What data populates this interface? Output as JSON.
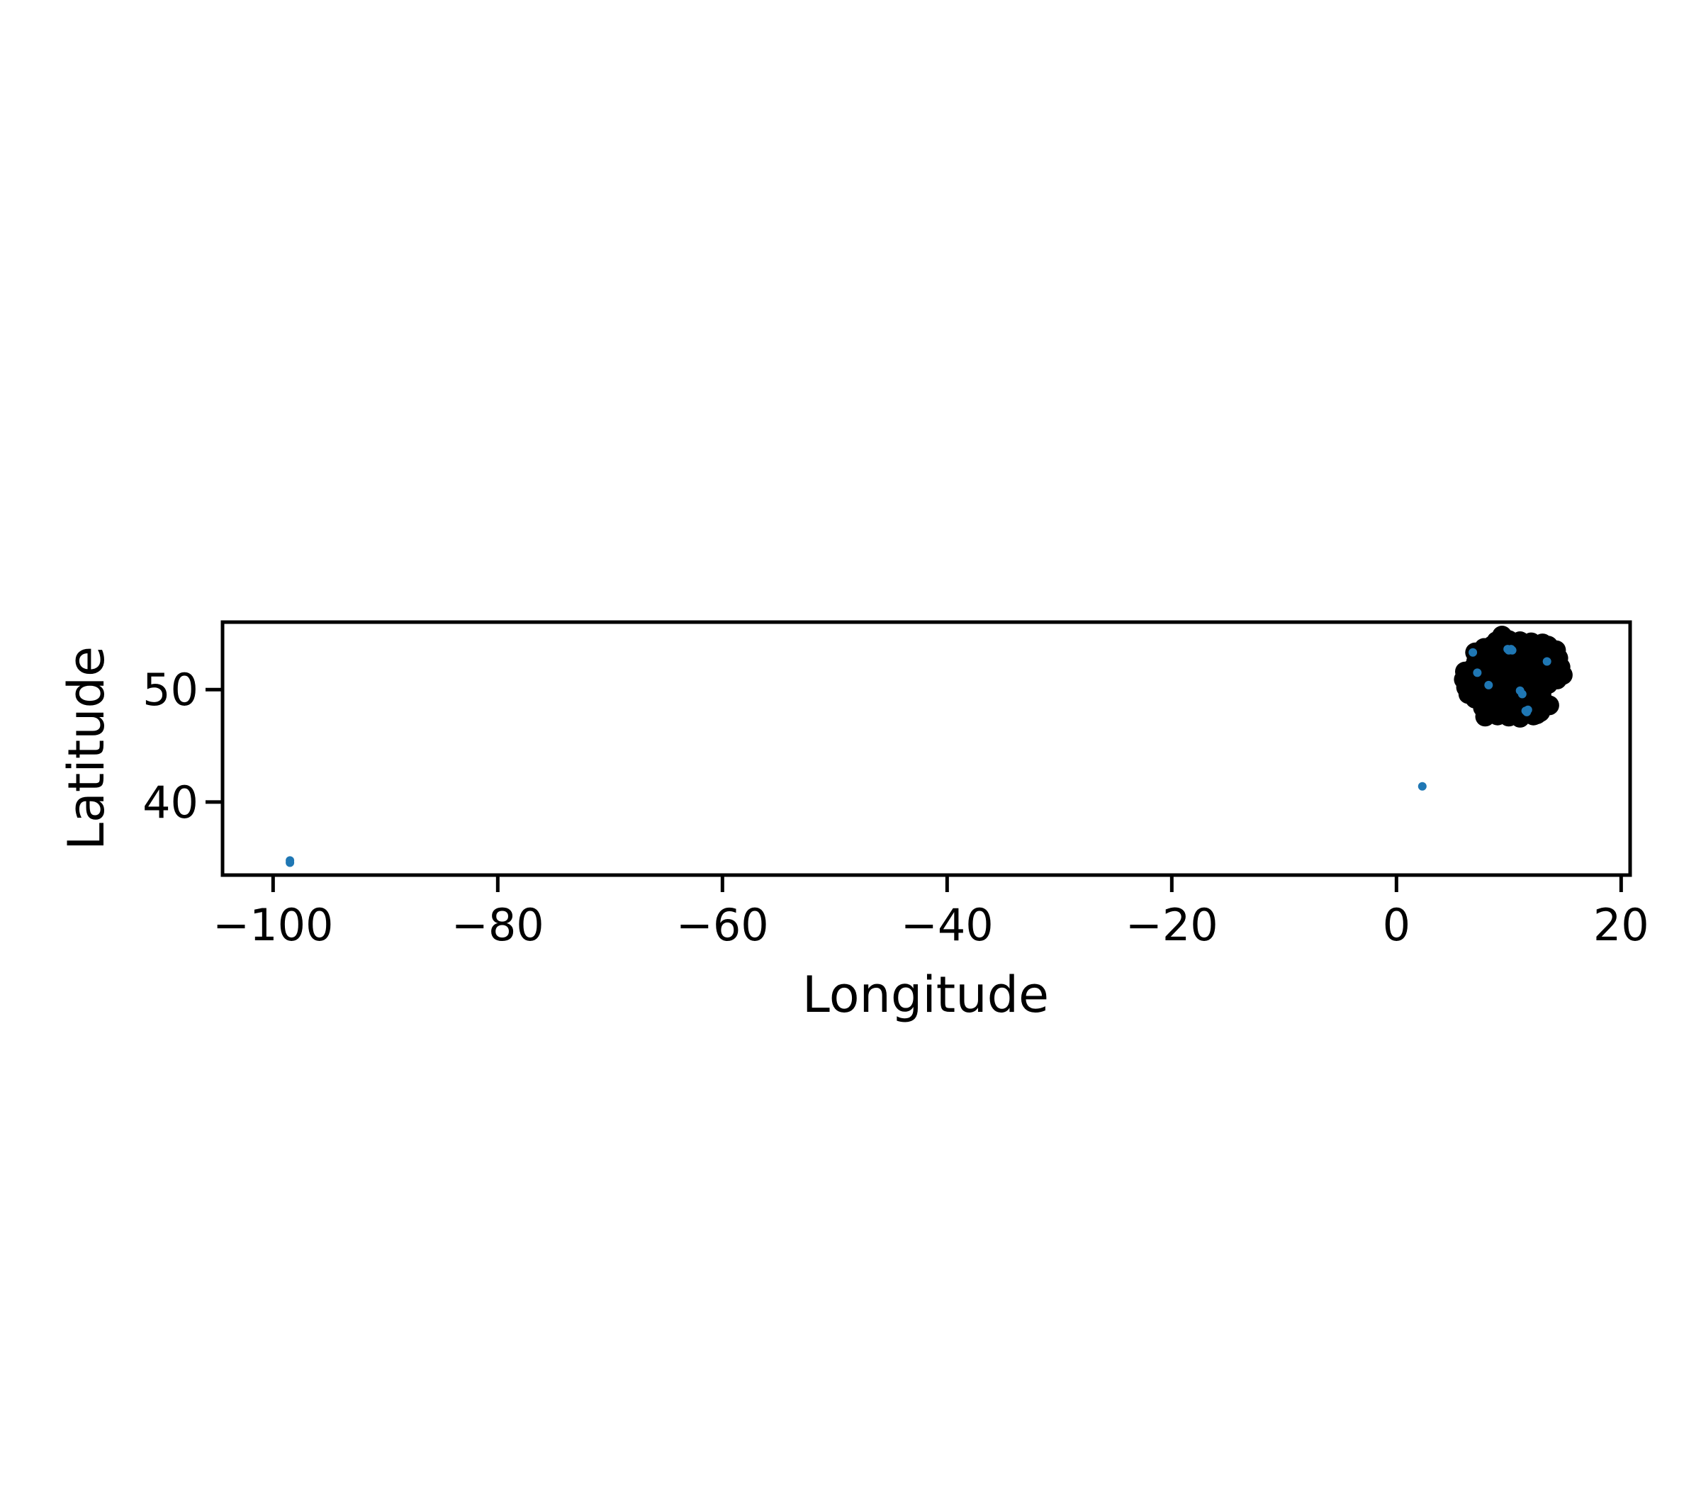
{
  "chart_data": {
    "type": "scatter",
    "title": "",
    "xlabel": "Longitude",
    "ylabel": "Latitude",
    "xlim": [
      -104.5,
      20.8
    ],
    "ylim": [
      33.5,
      56
    ],
    "xticks": [
      -100,
      -80,
      -60,
      -40,
      -20,
      0,
      20
    ],
    "yticks": [
      40,
      50
    ],
    "xtick_labels": [
      "−100",
      "−80",
      "−60",
      "−40",
      "−20",
      "0",
      "20"
    ],
    "ytick_labels": [
      "40",
      "50"
    ],
    "grid": false,
    "legend": "none",
    "series": [
      {
        "color": "#000000",
        "points": [
          [
            9.5,
            54.6
          ],
          [
            10.0,
            54.4
          ],
          [
            11.0,
            54.3
          ],
          [
            12.0,
            54.2
          ],
          [
            13.0,
            54.1
          ],
          [
            13.5,
            53.9
          ],
          [
            14.2,
            53.5
          ],
          [
            14.4,
            52.8
          ],
          [
            14.6,
            52.0
          ],
          [
            14.8,
            51.3
          ],
          [
            14.3,
            50.9
          ],
          [
            13.5,
            50.5
          ],
          [
            12.5,
            50.3
          ],
          [
            12.2,
            49.6
          ],
          [
            13.0,
            49.1
          ],
          [
            13.6,
            48.6
          ],
          [
            12.8,
            48.0
          ],
          [
            12.2,
            47.7
          ],
          [
            11.0,
            47.5
          ],
          [
            10.0,
            47.6
          ],
          [
            9.0,
            47.7
          ],
          [
            7.9,
            47.6
          ],
          [
            7.7,
            48.4
          ],
          [
            8.0,
            49.0
          ],
          [
            7.0,
            49.2
          ],
          [
            6.4,
            49.6
          ],
          [
            6.2,
            50.2
          ],
          [
            6.0,
            50.9
          ],
          [
            6.1,
            51.6
          ],
          [
            6.8,
            51.9
          ],
          [
            7.1,
            52.5
          ],
          [
            7.0,
            53.3
          ],
          [
            7.8,
            53.7
          ],
          [
            8.5,
            53.9
          ],
          [
            9.0,
            54.0
          ],
          [
            9.4,
            54.8
          ],
          [
            8.9,
            54.3
          ],
          [
            10.5,
            53.9
          ],
          [
            11.8,
            53.6
          ],
          [
            12.7,
            53.2
          ],
          [
            13.8,
            52.6
          ],
          [
            12.9,
            52.1
          ],
          [
            11.4,
            52.5
          ],
          [
            9.7,
            53.1
          ],
          [
            8.3,
            53.1
          ],
          [
            7.6,
            52.2
          ],
          [
            8.6,
            51.8
          ],
          [
            10.1,
            51.9
          ],
          [
            11.9,
            51.6
          ],
          [
            13.6,
            51.4
          ],
          [
            12.6,
            51.0
          ],
          [
            10.8,
            50.8
          ],
          [
            9.3,
            50.9
          ],
          [
            7.6,
            51.1
          ],
          [
            7.2,
            50.4
          ],
          [
            8.4,
            50.2
          ],
          [
            9.9,
            50.1
          ],
          [
            11.5,
            50.0
          ],
          [
            12.9,
            49.6
          ],
          [
            11.3,
            49.3
          ],
          [
            9.6,
            49.3
          ],
          [
            8.4,
            49.6
          ],
          [
            7.3,
            49.6
          ],
          [
            8.7,
            48.8
          ],
          [
            10.2,
            48.8
          ],
          [
            11.7,
            48.7
          ],
          [
            12.6,
            48.4
          ],
          [
            11.1,
            48.2
          ],
          [
            9.7,
            48.2
          ],
          [
            8.4,
            48.1
          ],
          [
            9.2,
            47.8
          ],
          [
            10.6,
            47.8
          ],
          [
            11.8,
            47.9
          ],
          [
            12.5,
            47.8
          ],
          [
            8.9,
            52.6
          ],
          [
            10.6,
            52.9
          ],
          [
            12.1,
            52.8
          ],
          [
            13.3,
            53.4
          ],
          [
            9.1,
            50.5
          ],
          [
            10.4,
            51.3
          ],
          [
            11.2,
            50.5
          ],
          [
            7.8,
            50.7
          ],
          [
            6.6,
            51.2
          ],
          [
            13.9,
            51.0
          ],
          [
            8.1,
            52.6
          ],
          [
            10.9,
            54.0
          ],
          [
            12.4,
            51.9
          ],
          [
            14.0,
            52.1
          ]
        ],
        "radius": 14
      },
      {
        "color": "#1f77b4",
        "points": [
          [
            -98.5,
            34.6
          ],
          [
            -98.5,
            34.8
          ],
          [
            2.3,
            41.4
          ],
          [
            6.8,
            53.3
          ],
          [
            7.2,
            51.5
          ],
          [
            8.2,
            50.4
          ],
          [
            9.9,
            53.6
          ],
          [
            10.0,
            53.5
          ],
          [
            10.2,
            53.6
          ],
          [
            10.3,
            53.5
          ],
          [
            13.4,
            52.5
          ],
          [
            11.0,
            49.9
          ],
          [
            11.2,
            49.6
          ],
          [
            11.5,
            48.1
          ],
          [
            11.7,
            48.2
          ],
          [
            11.6,
            48.0
          ]
        ],
        "radius": 6
      }
    ]
  }
}
